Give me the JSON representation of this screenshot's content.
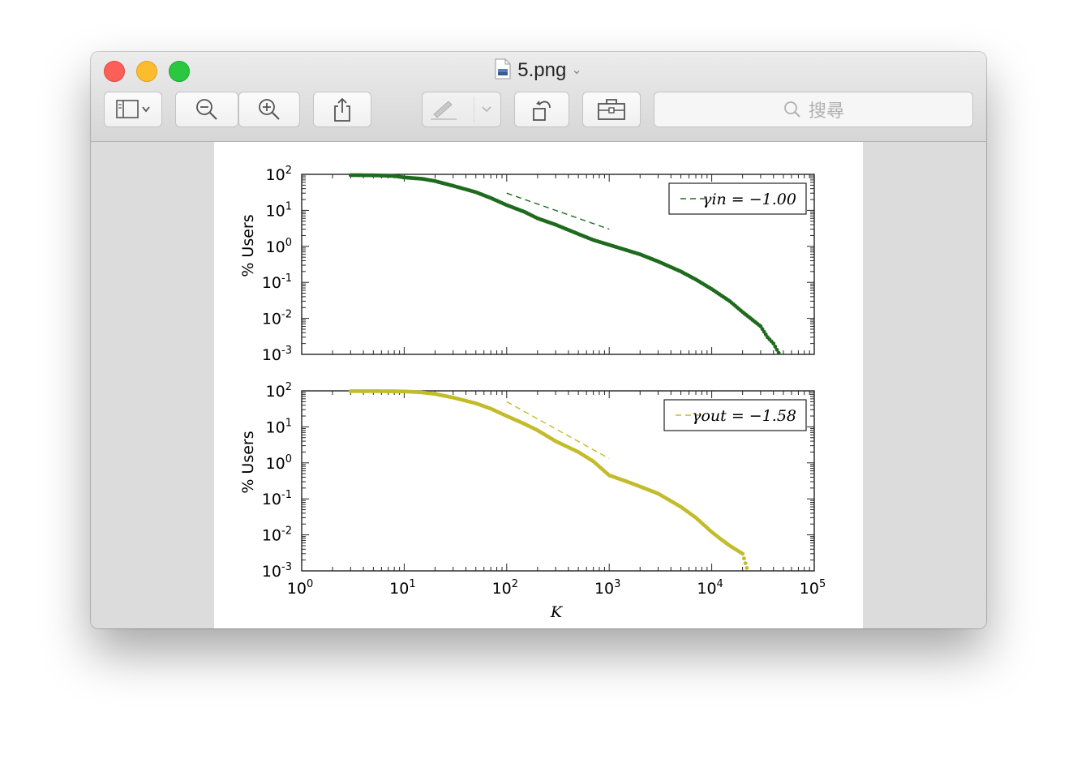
{
  "window": {
    "title": "5.png",
    "controls": [
      "close",
      "minimize",
      "maximize"
    ]
  },
  "toolbar": {
    "buttons": [
      {
        "name": "sidebar-toggle",
        "icon": "sidebar-icon"
      },
      {
        "name": "zoom-out",
        "icon": "zoom-out-icon"
      },
      {
        "name": "zoom-in",
        "icon": "zoom-in-icon"
      },
      {
        "name": "share",
        "icon": "share-icon"
      },
      {
        "name": "markup",
        "icon": "markup-pen-icon"
      },
      {
        "name": "rotate",
        "icon": "rotate-left-icon"
      },
      {
        "name": "toolbox",
        "icon": "toolbox-icon"
      }
    ],
    "search_placeholder": "搜尋"
  },
  "chart_data": [
    {
      "type": "scatter",
      "xscale": "log",
      "yscale": "log",
      "ylabel": "% Users",
      "ylim": [
        0.001,
        100
      ],
      "xlim": [
        1,
        100000
      ],
      "color": "#1e6b1e",
      "legend": "γin = −1.00",
      "legend_position": "top-right",
      "fit_line": {
        "slope": -1.0,
        "x": [
          100,
          1000
        ]
      },
      "series": [
        {
          "x": [
            3,
            5,
            8,
            10,
            15,
            20,
            30,
            50,
            70,
            100,
            150,
            200,
            300,
            500,
            700,
            1000,
            2000,
            3000,
            5000,
            7000,
            10000,
            15000,
            20000,
            30000,
            35000,
            40000,
            45000
          ],
          "y": [
            95,
            94,
            90,
            82,
            75,
            65,
            48,
            32,
            22,
            14,
            9,
            6,
            4,
            2.2,
            1.5,
            1.1,
            0.6,
            0.38,
            0.2,
            0.12,
            0.065,
            0.03,
            0.015,
            0.006,
            0.003,
            0.002,
            0.0011
          ]
        }
      ]
    },
    {
      "type": "scatter",
      "xscale": "log",
      "yscale": "log",
      "ylabel": "% Users",
      "xlabel": "K",
      "ylim": [
        0.001,
        100
      ],
      "xlim": [
        1,
        100000
      ],
      "color": "#c2bc2a",
      "legend": "γout = −1.58",
      "legend_position": "top-right",
      "fit_line": {
        "slope": -1.58,
        "x": [
          100,
          1000
        ]
      },
      "series": [
        {
          "x": [
            3,
            5,
            8,
            10,
            12,
            15,
            20,
            30,
            50,
            70,
            100,
            150,
            200,
            300,
            500,
            700,
            1000,
            1500,
            2000,
            3000,
            5000,
            7000,
            10000,
            12000,
            15000,
            20000,
            22000
          ],
          "y": [
            98,
            98,
            97,
            96,
            94,
            90,
            82,
            65,
            45,
            32,
            20,
            12,
            8,
            4,
            2,
            1.1,
            0.45,
            0.3,
            0.22,
            0.14,
            0.06,
            0.03,
            0.012,
            0.008,
            0.005,
            0.003,
            0.0012
          ]
        }
      ]
    }
  ],
  "axes": {
    "y_ticks": [
      "10^2",
      "10^1",
      "10^0",
      "10^-1",
      "10^-2",
      "10^-3"
    ],
    "x_ticks": [
      "10^0",
      "10^1",
      "10^2",
      "10^3",
      "10^4",
      "10^5"
    ]
  }
}
